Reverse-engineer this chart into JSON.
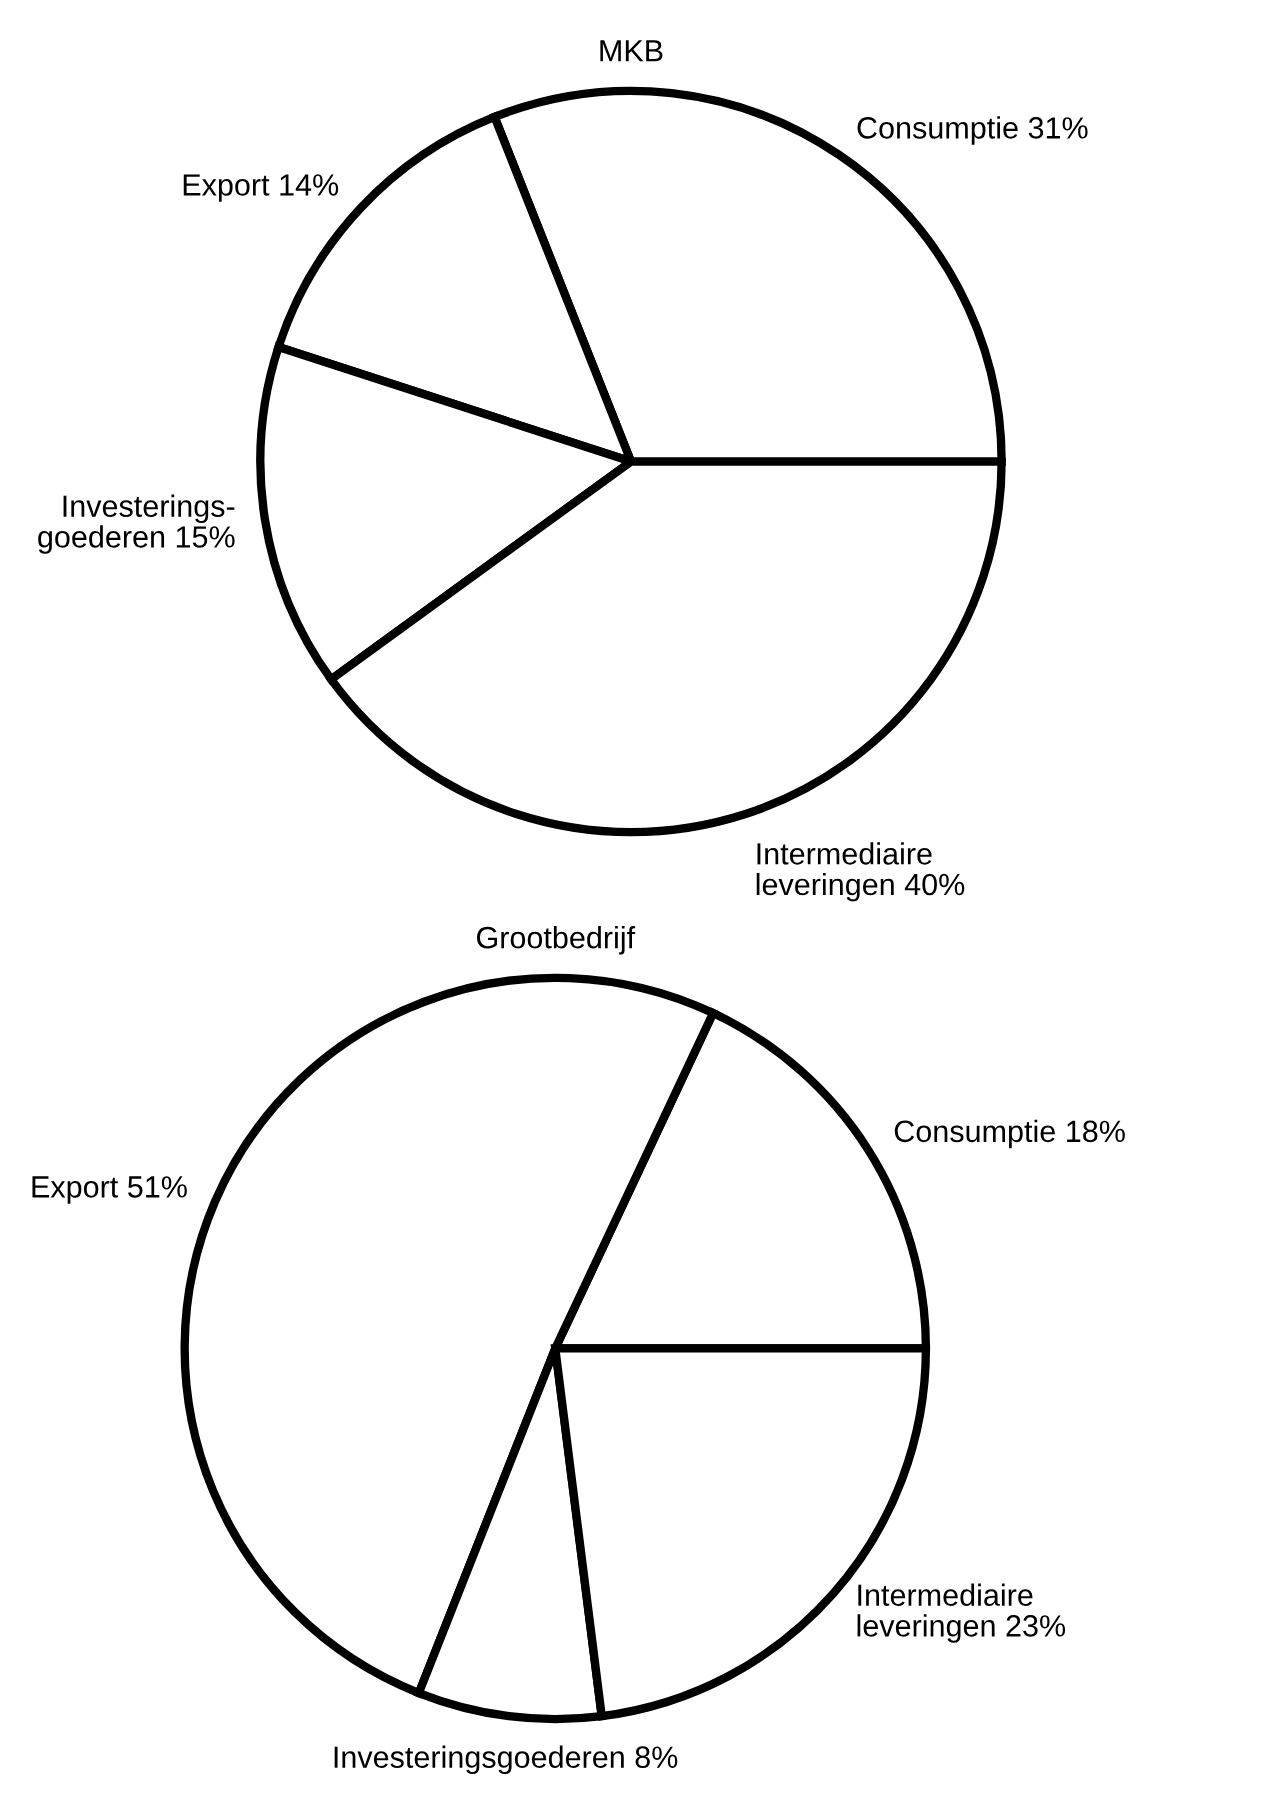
{
  "chart_data": [
    {
      "type": "pie",
      "title": "MKB",
      "categories": [
        "Consumptie",
        "Export",
        "Investerings-\ngoederen",
        "Intermediaire\nleveringen"
      ],
      "values": [
        31,
        14,
        15,
        40
      ],
      "value_labels": [
        "31%",
        "14%",
        "15%",
        "40%"
      ],
      "colors": [
        "#ffffff",
        "#ffffff",
        "#ffffff",
        "#ffffff"
      ]
    },
    {
      "type": "pie",
      "title": "Grootbedrijf",
      "categories": [
        "Consumptie",
        "Export",
        "Investeringsgoederen",
        "Intermediaire\nleveringen"
      ],
      "values": [
        18,
        51,
        8,
        23
      ],
      "value_labels": [
        "18%",
        "51%",
        "8%",
        "23%"
      ],
      "colors": [
        "#ffffff",
        "#ffffff",
        "#ffffff",
        "#ffffff"
      ]
    }
  ]
}
